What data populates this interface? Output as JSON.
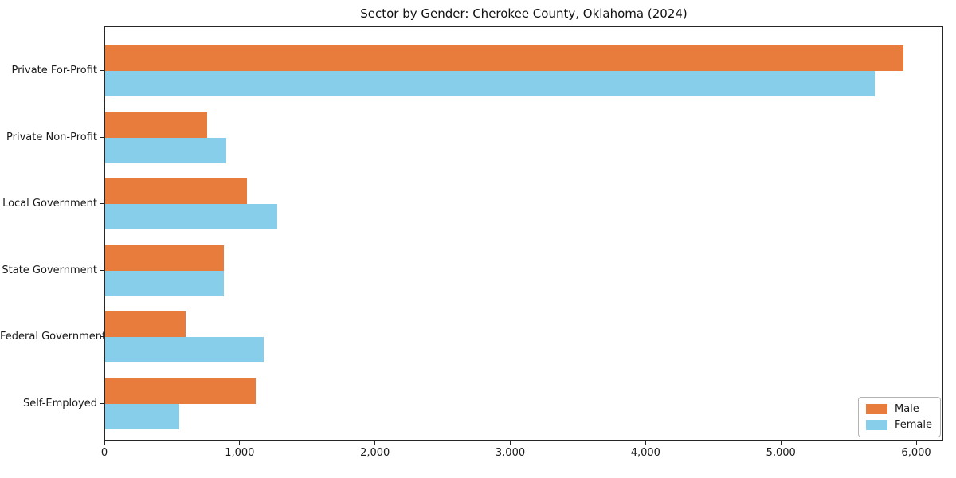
{
  "title": "Sector by Gender: Cherokee County, Oklahoma (2024)",
  "chart_data": {
    "type": "bar",
    "orientation": "horizontal",
    "title": "Sector by Gender: Cherokee County, Oklahoma (2024)",
    "xlabel": "",
    "ylabel": "",
    "categories": [
      "Private For-Profit",
      "Private Non-Profit",
      "Local Government",
      "State Government",
      "Federal Government",
      "Self-Employed"
    ],
    "series": [
      {
        "name": "Male",
        "color": "#e87c3c",
        "values": [
          5900,
          755,
          1050,
          880,
          595,
          1110
        ]
      },
      {
        "name": "Female",
        "color": "#87ceeb",
        "values": [
          5690,
          895,
          1270,
          875,
          1170,
          550
        ]
      }
    ],
    "xlim": [
      0,
      6200
    ],
    "xticks": [
      0,
      1000,
      2000,
      3000,
      4000,
      5000,
      6000
    ],
    "xtick_labels": [
      "0",
      "1,000",
      "2,000",
      "3,000",
      "4,000",
      "5,000",
      "6,000"
    ],
    "grid": false,
    "legend_position": "lower right",
    "colors": {
      "male": "#e87c3c",
      "female": "#87ceeb",
      "axis": "#262626",
      "text": "#1a1a1a"
    }
  }
}
